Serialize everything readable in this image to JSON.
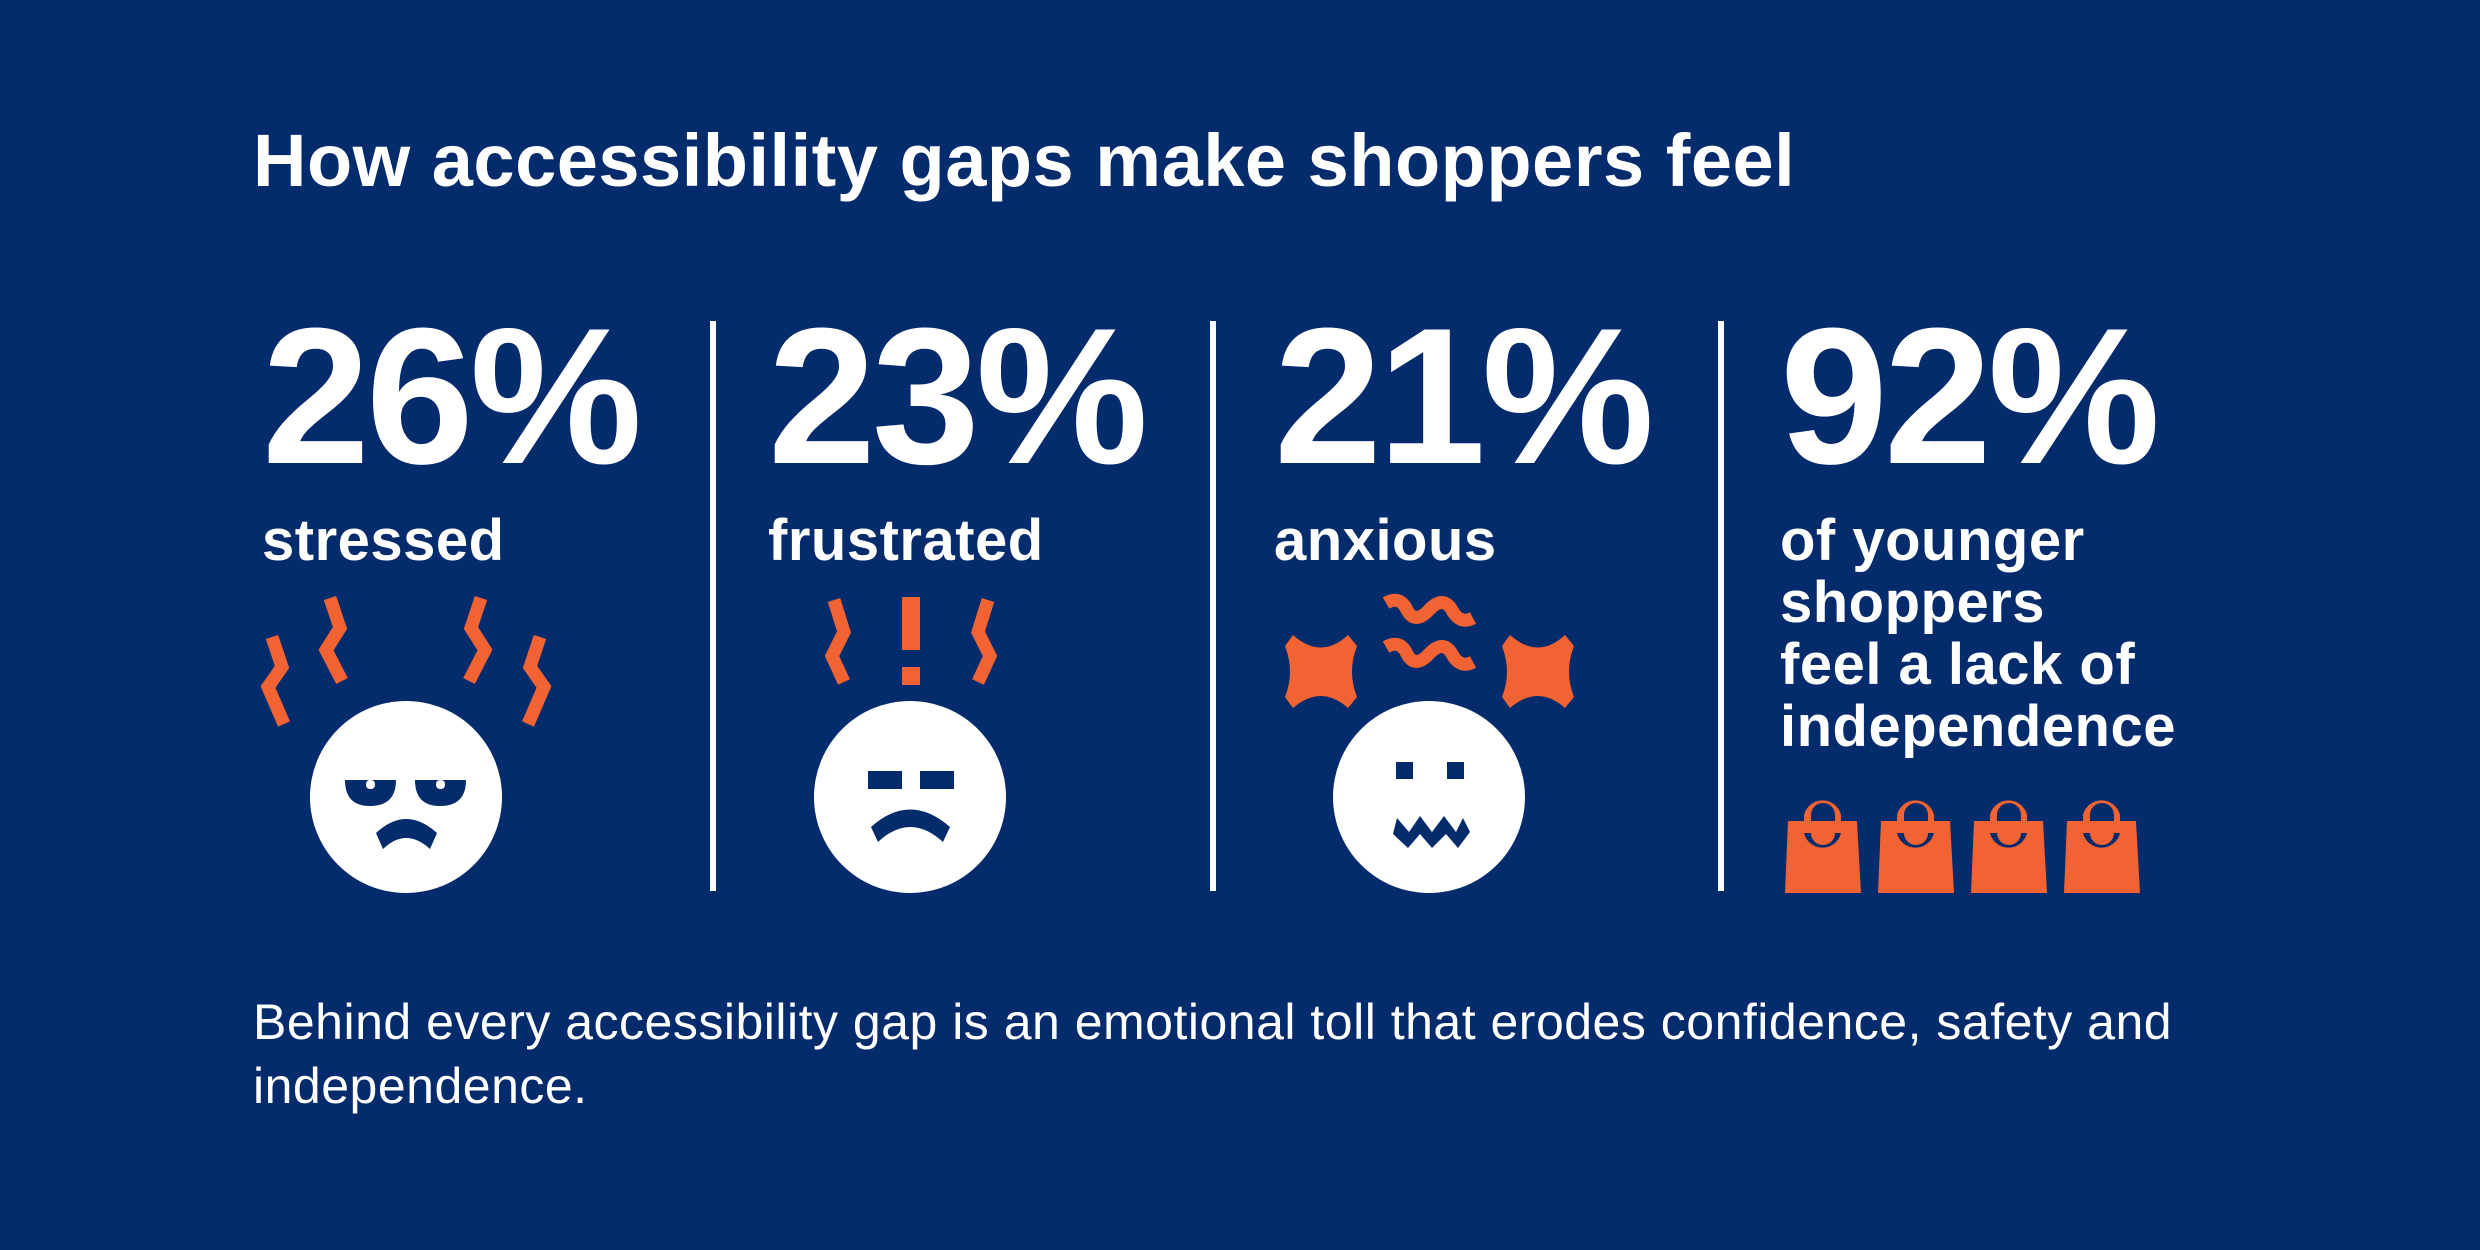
{
  "title": "How accessibility gaps make shoppers feel",
  "stats": [
    {
      "value": "26%",
      "label": "stressed",
      "icon": "stressed-face-icon"
    },
    {
      "value": "23%",
      "label": "frustrated",
      "icon": "frustrated-face-icon"
    },
    {
      "value": "21%",
      "label": "anxious",
      "icon": "anxious-face-icon"
    },
    {
      "value": "92%",
      "label_lines": [
        "of younger",
        "shoppers",
        "feel a lack of",
        "independence"
      ],
      "icon": "shopping-bag-icon"
    }
  ],
  "footer": "Behind every accessibility gap is an emotional toll that erodes confidence, safety and independence.",
  "colors": {
    "background": "#042B6B",
    "accent": "#F26334",
    "text": "#FFFFFF"
  }
}
